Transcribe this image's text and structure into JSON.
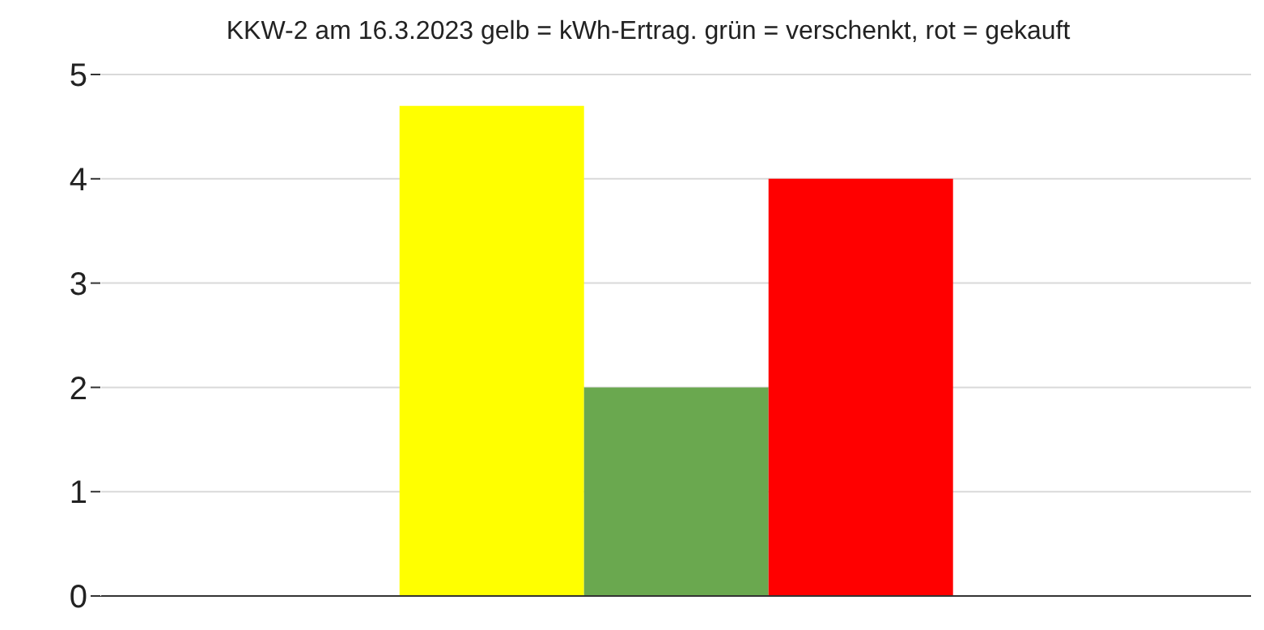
{
  "chart_data": {
    "type": "bar",
    "title": "KKW-2 am 16.3.2023 gelb = kWh-Ertrag. grün = verschenkt, rot = gekauft",
    "categories": [
      null
    ],
    "series": [
      {
        "color": "#ffff00",
        "values": [
          4.7
        ]
      },
      {
        "color": "#6aa84f",
        "values": [
          2.0
        ]
      },
      {
        "color": "#ff0000",
        "values": [
          4.0
        ]
      }
    ],
    "ylim": [
      0,
      5
    ],
    "yticks": [
      0,
      1,
      2,
      3,
      4,
      5
    ],
    "grid": "y"
  }
}
